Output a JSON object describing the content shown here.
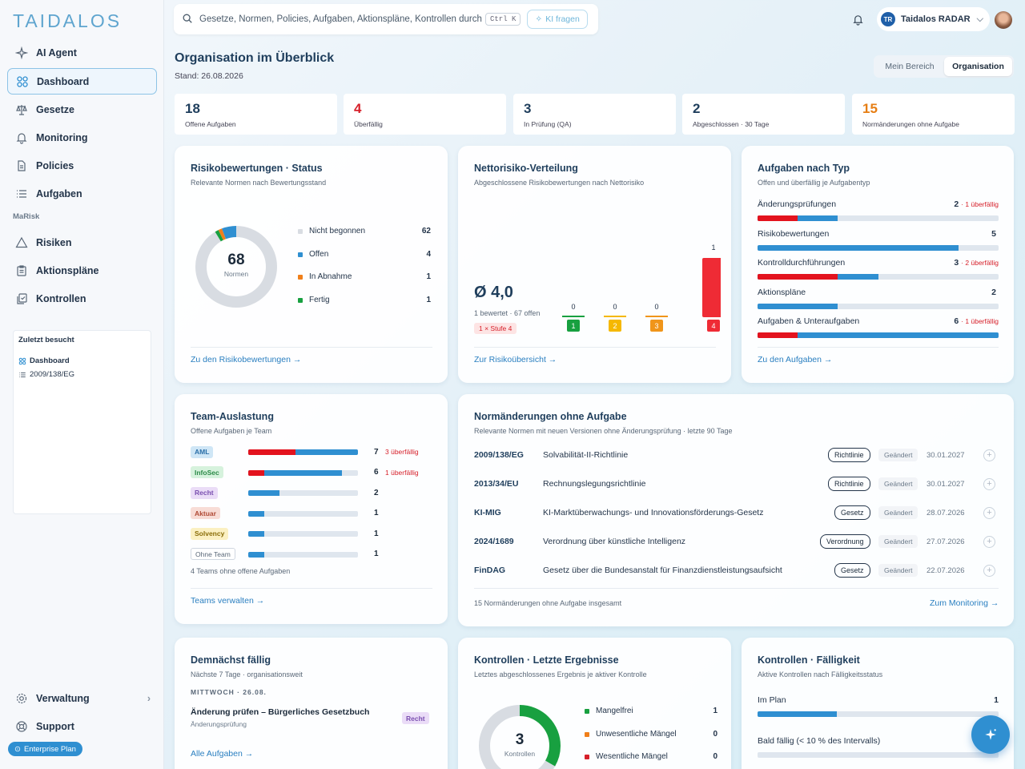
{
  "logo": "TAIDALOS",
  "sidebar": {
    "items": [
      {
        "label": "AI Agent",
        "icon": "sparkle-icon"
      },
      {
        "label": "Dashboard",
        "icon": "grid-icon"
      },
      {
        "label": "Gesetze",
        "icon": "scales-icon"
      },
      {
        "label": "Monitoring",
        "icon": "bell-icon"
      },
      {
        "label": "Policies",
        "icon": "document-icon"
      },
      {
        "label": "Aufgaben",
        "icon": "list-icon"
      },
      {
        "label": "Risiken",
        "icon": "warning-icon"
      },
      {
        "label": "Aktionspläne",
        "icon": "clipboard-icon"
      },
      {
        "label": "Kontrollen",
        "icon": "copy-check-icon"
      }
    ],
    "section": "MaRisk",
    "recent_title": "Zuletzt besucht",
    "recent": [
      "Dashboard",
      "2009/138/EG"
    ],
    "verwaltung": "Verwaltung",
    "support": "Support",
    "plan": "Enterprise Plan"
  },
  "search": {
    "placeholder": "Gesetze, Normen, Policies, Aufgaben, Aktionspläne, Kontrollen durchsuchen",
    "kbd": "Ctrl K",
    "ai": "KI fragen"
  },
  "user": {
    "initials": "TR",
    "name": "Taidalos RADAR"
  },
  "page": {
    "title": "Organisation im Überblick",
    "stand": "Stand: 26.08.2026",
    "seg": [
      "Mein Bereich",
      "Organisation"
    ]
  },
  "stats": [
    {
      "n": "18",
      "l": "Offene Aufgaben",
      "color": "#1f3e5c"
    },
    {
      "n": "4",
      "l": "Überfällig",
      "color": "#d6202a"
    },
    {
      "n": "3",
      "l": "In Prüfung (QA)",
      "color": "#1f3e5c"
    },
    {
      "n": "2",
      "l": "Abgeschlossen · 30 Tage",
      "color": "#1f3e5c"
    },
    {
      "n": "15",
      "l": "Normänderungen ohne Aufgabe",
      "color": "#e67e14"
    }
  ],
  "risk": {
    "title": "Risikobewertungen · Status",
    "sub": "Relevante Normen nach Bewertungsstand",
    "total": "68",
    "total_label": "Normen",
    "legend": [
      {
        "label": "Nicht begonnen",
        "value": "62",
        "color": "#d8dce2"
      },
      {
        "label": "Offen",
        "value": "4",
        "color": "#2f8fd1"
      },
      {
        "label": "In Abnahme",
        "value": "1",
        "color": "#f07f1a"
      },
      {
        "label": "Fertig",
        "value": "1",
        "color": "#18a040"
      }
    ],
    "link": "Zu den Risikobewertungen →"
  },
  "netto": {
    "title": "Nettorisiko-Verteilung",
    "sub": "Abgeschlossene Risikobewertungen nach Nettorisiko",
    "avg": "Ø 4,0",
    "info": "1 bewertet · 67 offen",
    "badge": "1 × Stufe 4",
    "levels": [
      {
        "label": "1",
        "count": "0",
        "value": 0,
        "color": "#18a040"
      },
      {
        "label": "2",
        "count": "0",
        "value": 0,
        "color": "#f5b800"
      },
      {
        "label": "3",
        "count": "0",
        "value": 0,
        "color": "#f0951a"
      },
      {
        "label": "4",
        "count": "1",
        "value": 1,
        "color": "#ef2b35"
      }
    ],
    "link": "Zur Risikoübersicht →"
  },
  "types": {
    "title": "Aufgaben nach Typ",
    "sub": "Offen und überfällig je Aufgabentyp",
    "rows": [
      {
        "label": "Änderungsprüfungen",
        "count": "2",
        "overdue": "· 1 überfällig",
        "open": 2,
        "od": 1
      },
      {
        "label": "Risikobewertungen",
        "count": "5",
        "overdue": "",
        "open": 5,
        "od": 0
      },
      {
        "label": "Kontrolldurchführungen",
        "count": "3",
        "overdue": "· 2 überfällig",
        "open": 3,
        "od": 2
      },
      {
        "label": "Aktionspläne",
        "count": "2",
        "overdue": "",
        "open": 2,
        "od": 0
      },
      {
        "label": "Aufgaben & Unteraufgaben",
        "count": "6",
        "overdue": "· 1 überfällig",
        "open": 6,
        "od": 1
      }
    ],
    "max": 6,
    "link": "Zu den Aufgaben →"
  },
  "team": {
    "title": "Team-Auslastung",
    "sub": "Offene Aufgaben je Team",
    "rows": [
      {
        "tag": "AML",
        "bg": "#cfe6f6",
        "fg": "#2a6fa8",
        "count": "7",
        "overdue": "3 überfällig",
        "open": 7,
        "od": 3
      },
      {
        "tag": "InfoSec",
        "bg": "#d6f2dd",
        "fg": "#2c8a48",
        "count": "6",
        "overdue": "1 überfällig",
        "open": 6,
        "od": 1
      },
      {
        "tag": "Recht",
        "bg": "#eadcf7",
        "fg": "#7a4fb0",
        "count": "2",
        "overdue": "",
        "open": 2,
        "od": 0
      },
      {
        "tag": "Aktuar",
        "bg": "#f8dcd6",
        "fg": "#b04a36",
        "count": "1",
        "overdue": "",
        "open": 1,
        "od": 0
      },
      {
        "tag": "Solvency",
        "bg": "#fbf0c2",
        "fg": "#8a6d08",
        "count": "1",
        "overdue": "",
        "open": 1,
        "od": 0
      },
      {
        "tag": "Ohne Team",
        "bg": "#ffffff",
        "fg": "#5a6878",
        "count": "1",
        "overdue": "",
        "open": 1,
        "od": 0
      }
    ],
    "max": 7,
    "note": "4 Teams ohne offene Aufgaben",
    "link": "Teams verwalten →"
  },
  "norms": {
    "title": "Normänderungen ohne Aufgabe",
    "sub": "Relevante Normen mit neuen Versionen ohne Änderungsprüfung · letzte 90 Tage",
    "rows": [
      {
        "id": "2009/138/EG",
        "name": "Solvabilität-II-Richtlinie",
        "type": "Richtlinie",
        "status": "Geändert",
        "date": "30.01.2027"
      },
      {
        "id": "2013/34/EU",
        "name": "Rechnungslegungsrichtlinie",
        "type": "Richtlinie",
        "status": "Geändert",
        "date": "30.01.2027"
      },
      {
        "id": "KI-MIG",
        "name": "KI-Marktüberwachungs- und Innovationsförderungs-Gesetz",
        "type": "Gesetz",
        "status": "Geändert",
        "date": "28.07.2026"
      },
      {
        "id": "2024/1689",
        "name": "Verordnung über künstliche Intelligenz",
        "type": "Verordnung",
        "status": "Geändert",
        "date": "27.07.2026"
      },
      {
        "id": "FinDAG",
        "name": "Gesetz über die Bundesanstalt für Finanzdienstleistungsaufsicht",
        "type": "Gesetz",
        "status": "Geändert",
        "date": "22.07.2026"
      }
    ],
    "total": "15 Normänderungen ohne Aufgabe insgesamt",
    "link": "Zum Monitoring →"
  },
  "due": {
    "title": "Demnächst fällig",
    "sub": "Nächste 7 Tage · organisationsweit",
    "day": "MITTWOCH · 26.08.",
    "item_title": "Änderung prüfen – Bürgerliches Gesetzbuch",
    "item_sub": "Änderungsprüfung",
    "item_tag": "Recht",
    "link": "Alle Aufgaben →"
  },
  "results": {
    "title": "Kontrollen · Letzte Ergebnisse",
    "sub": "Letztes abgeschlossenes Ergebnis je aktiver Kontrolle",
    "total": "3",
    "total_label": "Kontrollen",
    "legend": [
      {
        "label": "Mangelfrei",
        "value": "1",
        "color": "#18a040"
      },
      {
        "label": "Unwesentliche Mängel",
        "value": "0",
        "color": "#f07f1a"
      },
      {
        "label": "Wesentliche Mängel",
        "value": "0",
        "color": "#d6202a"
      }
    ],
    "done": 1
  },
  "faellig": {
    "title": "Kontrollen · Fälligkeit",
    "sub": "Aktive Kontrollen nach Fälligkeitsstatus",
    "rows": [
      {
        "label": "Im Plan",
        "value": "1",
        "fill": 0.33
      },
      {
        "label": "Bald fällig (< 10 % des Intervalls)",
        "value": "",
        "fill": 0
      }
    ]
  }
}
